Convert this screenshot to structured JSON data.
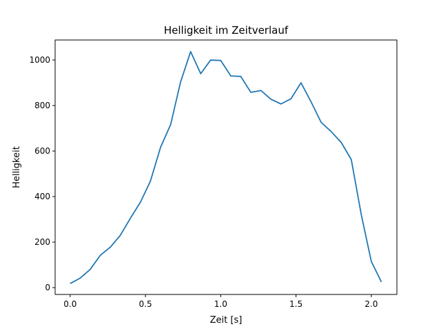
{
  "chart_data": {
    "type": "line",
    "title": "Helligkeit im Zeitverlauf",
    "xlabel": "Zeit [s]",
    "ylabel": "Helligkeit",
    "xlim": [
      -0.1,
      2.17
    ],
    "ylim": [
      -30,
      1088
    ],
    "x_ticks": [
      0.0,
      0.5,
      1.0,
      1.5,
      2.0
    ],
    "x_tick_labels": [
      "0.0",
      "0.5",
      "1.0",
      "1.5",
      "2.0"
    ],
    "y_ticks": [
      0,
      200,
      400,
      600,
      800,
      1000
    ],
    "y_tick_labels": [
      "0",
      "200",
      "400",
      "600",
      "800",
      "1000"
    ],
    "grid": false,
    "color": "#1f77b4",
    "series": [
      {
        "x": [
          0.0,
          0.067,
          0.133,
          0.2,
          0.267,
          0.333,
          0.4,
          0.467,
          0.533,
          0.6,
          0.667,
          0.733,
          0.8,
          0.867,
          0.933,
          1.0,
          1.067,
          1.133,
          1.2,
          1.267,
          1.333,
          1.4,
          1.467,
          1.533,
          1.6,
          1.667,
          1.733,
          1.8,
          1.867,
          1.933,
          2.0,
          2.067
        ],
        "values": [
          18,
          42,
          80,
          142,
          178,
          230,
          305,
          376,
          468,
          616,
          716,
          903,
          1037,
          940,
          1000,
          998,
          930,
          928,
          858,
          866,
          828,
          807,
          830,
          900,
          816,
          726,
          686,
          638,
          563,
          322,
          115,
          25
        ]
      }
    ]
  }
}
